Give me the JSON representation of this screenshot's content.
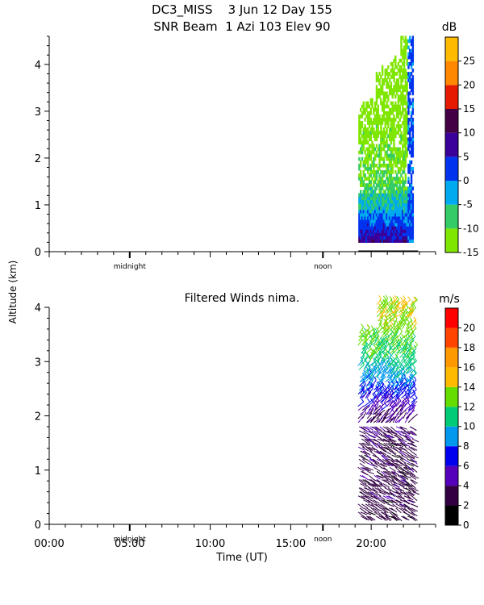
{
  "header": {
    "title_line1": "DC3_MISS    3 Jun 12 Day 155",
    "title_line2": "SNR Beam  1 Azi 103 Elev 90"
  },
  "shared": {
    "ylabel": "Altitude (km)",
    "xlabel": "Time (UT)",
    "midnight_label": "midnight",
    "noon_label": "noon",
    "x_tick_labels": [
      "00:00",
      "05:00",
      "10:00",
      "15:00",
      "20:00"
    ]
  },
  "colors": {
    "snr_scale": [
      "#7fe600",
      "#33cc66",
      "#00aaee",
      "#0033ee",
      "#3a0099",
      "#440044",
      "#e61a00",
      "#ff8800",
      "#ffbb00"
    ],
    "wind_scale": [
      "#000000",
      "#330044",
      "#5500bb",
      "#0000ee",
      "#0099ee",
      "#00cc77",
      "#66dd00",
      "#ffbb00",
      "#ff9900",
      "#ff4400",
      "#ff0000"
    ]
  },
  "chart_data": [
    {
      "type": "heatmap",
      "title": "",
      "xlabel": "",
      "ylabel": "Altitude (km)",
      "xlim": [
        0,
        24
      ],
      "ylim": [
        0,
        4.6
      ],
      "colorbar": {
        "unit": "dB",
        "tick_labels": [
          "-15",
          "-10",
          "-5",
          "0",
          "5",
          "10",
          "15",
          "20",
          "25"
        ],
        "range": [
          -15,
          30
        ]
      },
      "data_extent": {
        "time_start": 19.2,
        "time_end": 22.6,
        "alt_min": 0.2,
        "alt_max": 4.6
      },
      "altitude_profile": {
        "altitude_km": [
          0.2,
          0.5,
          1.0,
          1.5,
          2.0,
          2.5,
          3.0,
          3.5,
          4.0,
          4.6
        ],
        "snr_db": [
          8,
          3,
          -5,
          -10,
          -12,
          -13,
          -14,
          -15,
          -15,
          -15
        ]
      },
      "right_edge_snr_db": 1,
      "markers": [
        "midnight",
        "noon"
      ]
    },
    {
      "type": "scatter",
      "title": "Filtered Winds nima.",
      "xlabel": "Time (UT)",
      "ylabel": "Altitude (km)",
      "xlim": [
        0,
        24
      ],
      "ylim": [
        0,
        4
      ],
      "x_ticks": [
        "00:00",
        "05:00",
        "10:00",
        "15:00",
        "20:00"
      ],
      "colorbar": {
        "unit": "m/s",
        "tick_labels": [
          "0",
          "2",
          "4",
          "6",
          "8",
          "10",
          "12",
          "14",
          "16",
          "18",
          "20"
        ],
        "range": [
          0,
          22
        ]
      },
      "data_extent": {
        "time_start": 19.2,
        "time_end": 22.6,
        "alt_min": 0.1,
        "alt_max": 4.1
      },
      "speed_profile": {
        "altitude_km": [
          0.1,
          0.5,
          1.0,
          1.5,
          2.0,
          2.5,
          3.0,
          3.5,
          4.0
        ],
        "speed_ms": [
          3,
          3,
          3,
          3,
          4,
          8,
          11,
          13,
          14
        ]
      },
      "markers": [
        "midnight",
        "noon"
      ]
    }
  ]
}
